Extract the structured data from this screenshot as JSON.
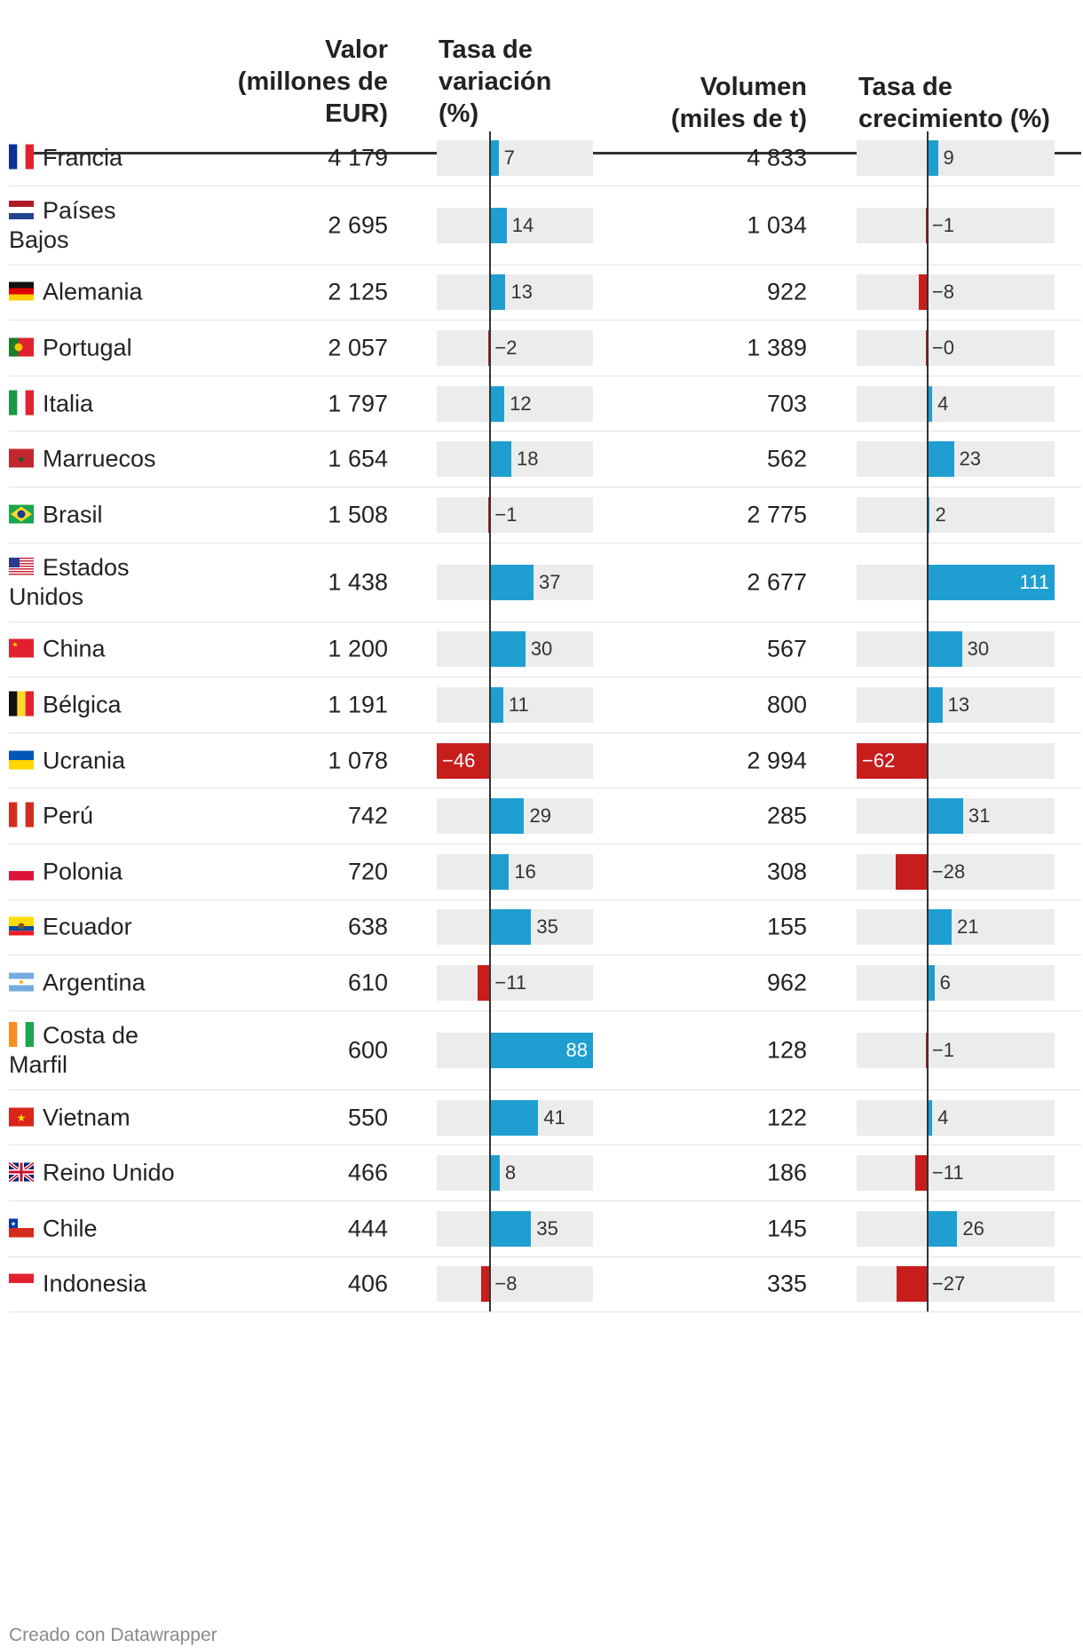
{
  "headers": {
    "valor": [
      "Valor",
      "(millones de",
      "EUR)"
    ],
    "tasa_variacion": [
      "Tasa de",
      "variación",
      "(%)"
    ],
    "volumen": [
      "Volumen",
      "(miles de t)"
    ],
    "tasa_crecimiento": [
      "Tasa de",
      "crecimiento (%)"
    ]
  },
  "footer": "Creado con Datawrapper",
  "colors": {
    "positive": "#1f9fd1",
    "negative": "#c71e1d",
    "bar_bg": "#ececec"
  },
  "chart_data": {
    "type": "table",
    "columns": [
      "Valor (millones de EUR)",
      "Tasa de variación (%)",
      "Volumen (miles de t)",
      "Tasa de crecimiento (%)"
    ],
    "scales": {
      "tasa_variacion": [
        -46,
        88
      ],
      "tasa_crecimiento": [
        -62,
        111
      ]
    },
    "rows": [
      {
        "country": "Francia",
        "flag": "fr",
        "valor": "4 179",
        "variacion": 7,
        "variacion_label": "7",
        "volumen": "4 833",
        "crecimiento": 9,
        "crecimiento_label": "9"
      },
      {
        "country": "Países Bajos",
        "flag": "nl",
        "valor": "2 695",
        "variacion": 14,
        "variacion_label": "14",
        "volumen": "1 034",
        "crecimiento": -1,
        "crecimiento_label": "−1"
      },
      {
        "country": "Alemania",
        "flag": "de",
        "valor": "2 125",
        "variacion": 13,
        "variacion_label": "13",
        "volumen": "922",
        "crecimiento": -8,
        "crecimiento_label": "−8"
      },
      {
        "country": "Portugal",
        "flag": "pt",
        "valor": "2 057",
        "variacion": -2,
        "variacion_label": "−2",
        "volumen": "1 389",
        "crecimiento": -0.4,
        "crecimiento_label": "−0"
      },
      {
        "country": "Italia",
        "flag": "it",
        "valor": "1 797",
        "variacion": 12,
        "variacion_label": "12",
        "volumen": "703",
        "crecimiento": 4,
        "crecimiento_label": "4"
      },
      {
        "country": "Marruecos",
        "flag": "ma",
        "valor": "1 654",
        "variacion": 18,
        "variacion_label": "18",
        "volumen": "562",
        "crecimiento": 23,
        "crecimiento_label": "23"
      },
      {
        "country": "Brasil",
        "flag": "br",
        "valor": "1 508",
        "variacion": -1,
        "variacion_label": "−1",
        "volumen": "2 775",
        "crecimiento": 2,
        "crecimiento_label": "2"
      },
      {
        "country": "Estados Unidos",
        "flag": "us",
        "valor": "1 438",
        "variacion": 37,
        "variacion_label": "37",
        "volumen": "2 677",
        "crecimiento": 111,
        "crecimiento_label": "111"
      },
      {
        "country": "China",
        "flag": "cn",
        "valor": "1 200",
        "variacion": 30,
        "variacion_label": "30",
        "volumen": "567",
        "crecimiento": 30,
        "crecimiento_label": "30"
      },
      {
        "country": "Bélgica",
        "flag": "be",
        "valor": "1 191",
        "variacion": 11,
        "variacion_label": "11",
        "volumen": "800",
        "crecimiento": 13,
        "crecimiento_label": "13"
      },
      {
        "country": "Ucrania",
        "flag": "ua",
        "valor": "1 078",
        "variacion": -46,
        "variacion_label": "−46",
        "volumen": "2 994",
        "crecimiento": -62,
        "crecimiento_label": "−62"
      },
      {
        "country": "Perú",
        "flag": "pe",
        "valor": "742",
        "variacion": 29,
        "variacion_label": "29",
        "volumen": "285",
        "crecimiento": 31,
        "crecimiento_label": "31"
      },
      {
        "country": "Polonia",
        "flag": "pl",
        "valor": "720",
        "variacion": 16,
        "variacion_label": "16",
        "volumen": "308",
        "crecimiento": -28,
        "crecimiento_label": "−28"
      },
      {
        "country": "Ecuador",
        "flag": "ec",
        "valor": "638",
        "variacion": 35,
        "variacion_label": "35",
        "volumen": "155",
        "crecimiento": 21,
        "crecimiento_label": "21"
      },
      {
        "country": "Argentina",
        "flag": "ar",
        "valor": "610",
        "variacion": -11,
        "variacion_label": "−11",
        "volumen": "962",
        "crecimiento": 6,
        "crecimiento_label": "6"
      },
      {
        "country": "Costa de Marfil",
        "flag": "ci",
        "valor": "600",
        "variacion": 88,
        "variacion_label": "88",
        "volumen": "128",
        "crecimiento": -1,
        "crecimiento_label": "−1"
      },
      {
        "country": "Vietnam",
        "flag": "vn",
        "valor": "550",
        "variacion": 41,
        "variacion_label": "41",
        "volumen": "122",
        "crecimiento": 4,
        "crecimiento_label": "4"
      },
      {
        "country": "Reino Unido",
        "flag": "gb",
        "valor": "466",
        "variacion": 8,
        "variacion_label": "8",
        "volumen": "186",
        "crecimiento": -11,
        "crecimiento_label": "−11"
      },
      {
        "country": "Chile",
        "flag": "cl",
        "valor": "444",
        "variacion": 35,
        "variacion_label": "35",
        "volumen": "145",
        "crecimiento": 26,
        "crecimiento_label": "26"
      },
      {
        "country": "Indonesia",
        "flag": "id",
        "valor": "406",
        "variacion": -8,
        "variacion_label": "−8",
        "volumen": "335",
        "crecimiento": -27,
        "crecimiento_label": "−27"
      }
    ]
  }
}
